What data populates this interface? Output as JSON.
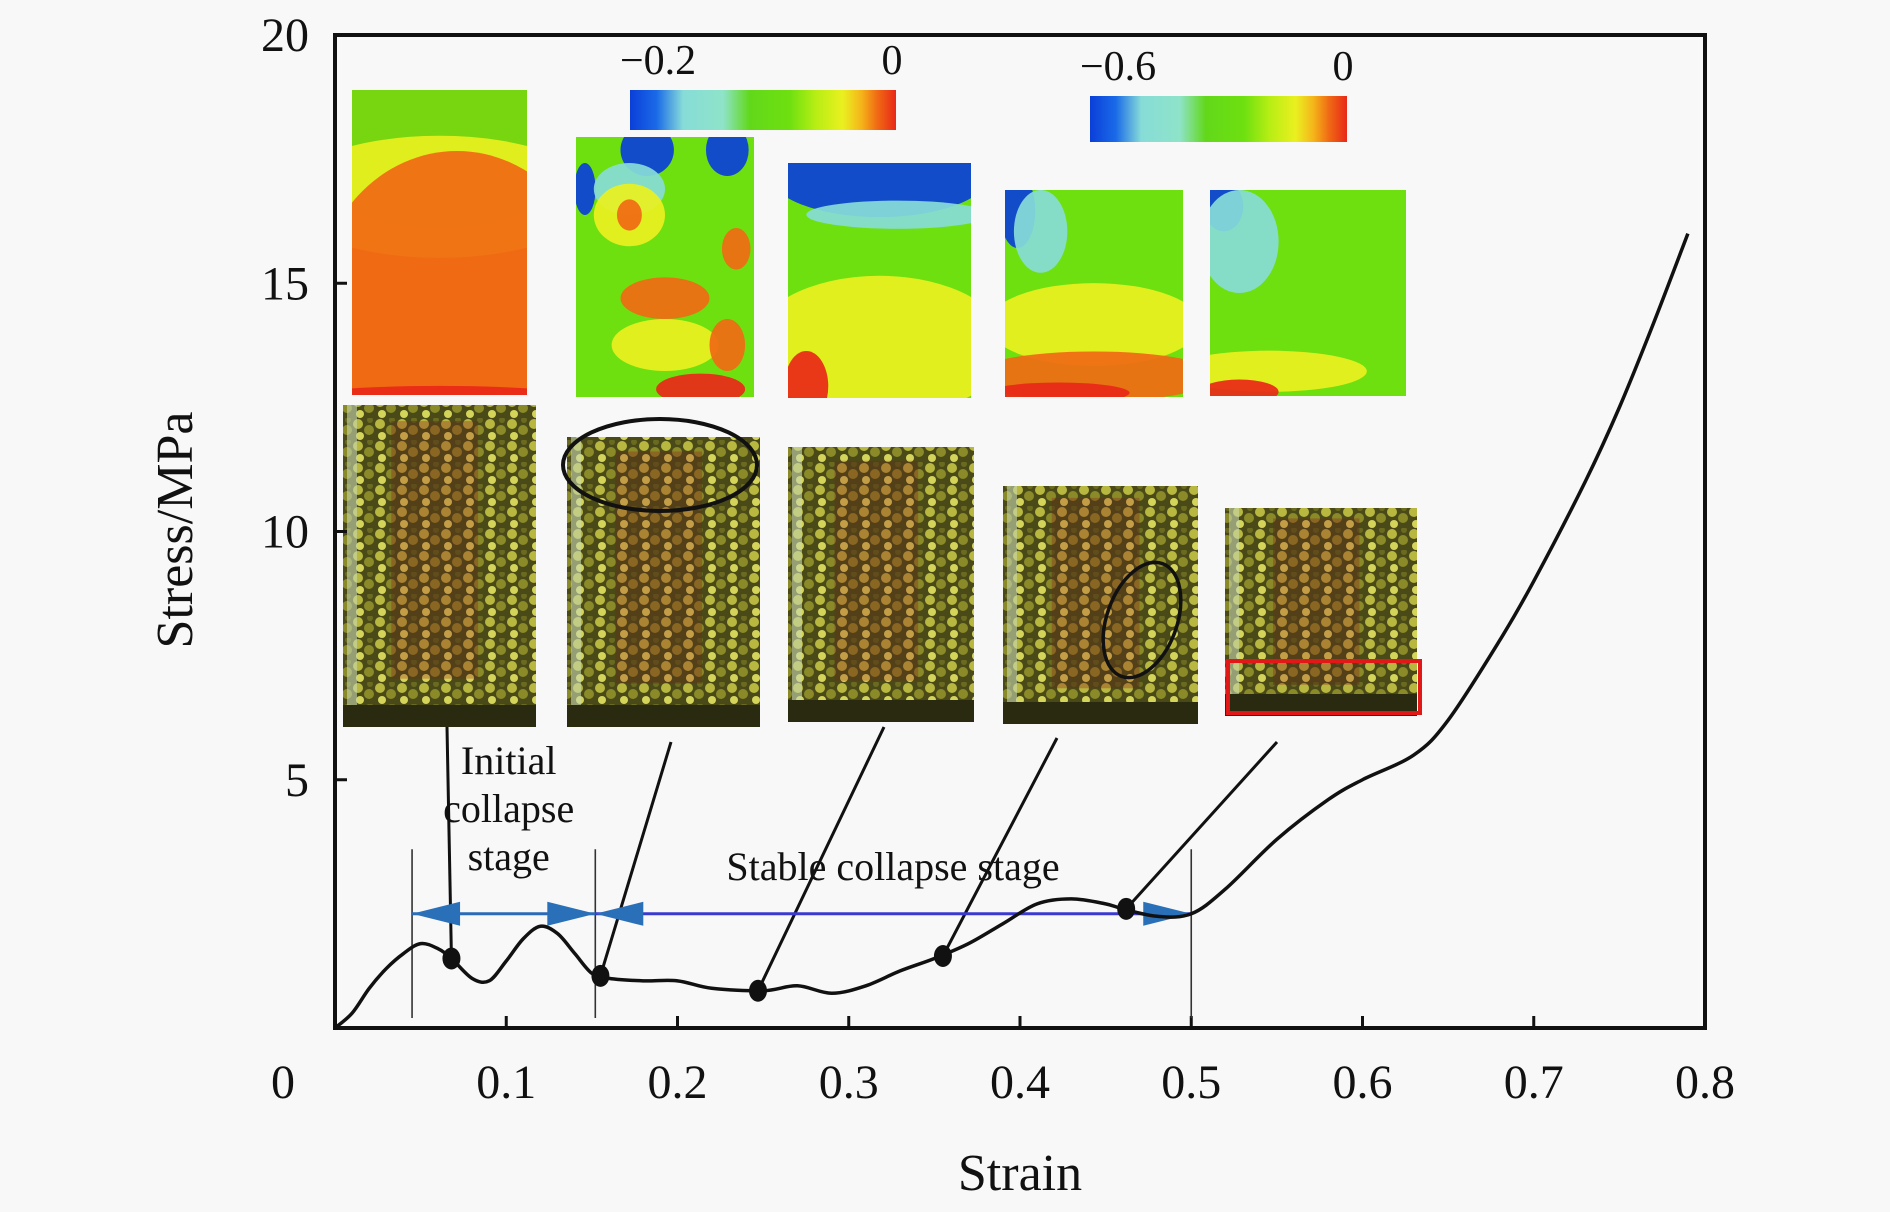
{
  "chart_data": {
    "type": "line",
    "title": "",
    "xlabel": "Strain",
    "ylabel": "Stress/MPa",
    "xlim": [
      0,
      0.8
    ],
    "ylim": [
      0,
      20
    ],
    "grid": false,
    "xticks": [
      "0",
      "0.1",
      "0.2",
      "0.3",
      "0.4",
      "0.5",
      "0.6",
      "0.7",
      "0.8"
    ],
    "xtick_values": [
      0,
      0.1,
      0.2,
      0.3,
      0.4,
      0.5,
      0.6,
      0.7,
      0.8
    ],
    "yticks": [
      "0",
      "5",
      "10",
      "15",
      "20"
    ],
    "ytick_values": [
      0,
      5,
      10,
      15,
      20
    ],
    "series": [
      {
        "name": "stress-strain curve",
        "color": "#111111",
        "x": [
          0,
          0.01,
          0.02,
          0.03,
          0.04,
          0.05,
          0.06,
          0.068,
          0.08,
          0.09,
          0.1,
          0.11,
          0.12,
          0.13,
          0.14,
          0.15,
          0.16,
          0.18,
          0.2,
          0.22,
          0.25,
          0.27,
          0.29,
          0.31,
          0.33,
          0.35,
          0.37,
          0.39,
          0.41,
          0.43,
          0.45,
          0.46,
          0.48,
          0.5,
          0.52,
          0.55,
          0.58,
          0.6,
          0.63,
          0.65,
          0.68,
          0.7,
          0.73,
          0.75,
          0.77,
          0.79
        ],
        "y": [
          0,
          0.3,
          0.8,
          1.2,
          1.5,
          1.7,
          1.6,
          1.4,
          1.0,
          0.95,
          1.35,
          1.8,
          2.05,
          1.9,
          1.5,
          1.1,
          1.0,
          0.95,
          0.95,
          0.8,
          0.75,
          0.85,
          0.7,
          0.85,
          1.15,
          1.4,
          1.7,
          2.1,
          2.5,
          2.6,
          2.5,
          2.4,
          2.25,
          2.3,
          2.8,
          3.8,
          4.6,
          5.0,
          5.5,
          6.2,
          7.8,
          9.0,
          11.0,
          12.5,
          14.2,
          16.0
        ]
      }
    ],
    "markers": [
      {
        "x": 0.068,
        "y": 1.4
      },
      {
        "x": 0.155,
        "y": 1.05
      },
      {
        "x": 0.247,
        "y": 0.75
      },
      {
        "x": 0.355,
        "y": 1.45
      },
      {
        "x": 0.462,
        "y": 2.4
      }
    ],
    "stage_boundaries": [
      0.045,
      0.152,
      0.5
    ],
    "stages": [
      {
        "label_lines": [
          "Initial",
          "collapse",
          "stage"
        ],
        "x_start": 0.045,
        "x_end": 0.152,
        "arrow_y": 2.3
      },
      {
        "label_lines": [
          "Stable collapse stage"
        ],
        "x_start": 0.152,
        "x_end": 0.5,
        "arrow_y": 2.3
      }
    ],
    "colorbars": [
      {
        "min_label": "−0.2",
        "max_label": "0"
      },
      {
        "min_label": "−0.6",
        "max_label": "0"
      }
    ],
    "colormap": [
      "#0b3fd8",
      "#1a6ae8",
      "#87dcd8",
      "#8ee3c8",
      "#62d81a",
      "#6ee010",
      "#b8ee14",
      "#eaf020",
      "#f5b41a",
      "#f06a14",
      "#e82818"
    ],
    "inset_images": [
      {
        "type": "strain-contour",
        "index": 1
      },
      {
        "type": "strain-contour",
        "index": 2
      },
      {
        "type": "strain-contour",
        "index": 3
      },
      {
        "type": "strain-contour",
        "index": 4
      },
      {
        "type": "strain-contour",
        "index": 5
      },
      {
        "type": "specimen-photo",
        "index": 1,
        "highlight": "none"
      },
      {
        "type": "specimen-photo",
        "index": 2,
        "highlight": "ellipse-top"
      },
      {
        "type": "specimen-photo",
        "index": 3,
        "highlight": "none"
      },
      {
        "type": "specimen-photo",
        "index": 4,
        "highlight": "ellipse-middle"
      },
      {
        "type": "specimen-photo",
        "index": 5,
        "highlight": "red-rectangle-bottom"
      }
    ]
  }
}
